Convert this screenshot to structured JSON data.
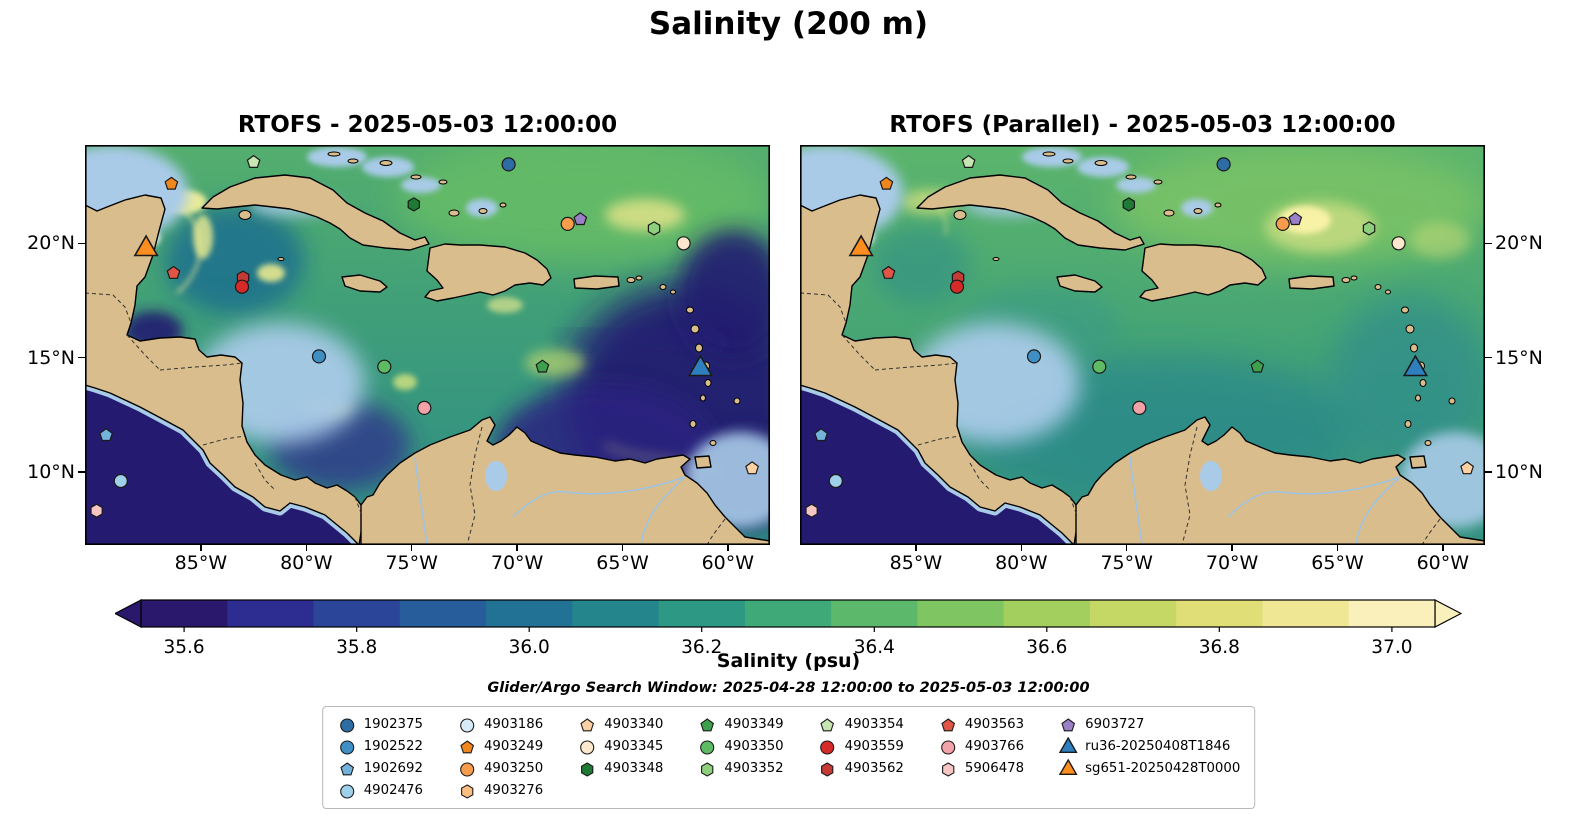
{
  "title": "Salinity (200 m)",
  "search_window_note": "Glider/Argo Search Window: 2025-04-28 12:00:00 to 2025-05-03 12:00:00",
  "chart_data": {
    "type": "heatmap",
    "subtype": "geographic salinity field comparison with float/glider scatter markers",
    "depth": "200 m",
    "region": "Caribbean Sea / western tropical Atlantic",
    "panels": [
      {
        "title": "RTOFS - 2025-05-03 12:00:00",
        "model": "RTOFS",
        "valid_time": "2025-05-03 12:00:00"
      },
      {
        "title": "RTOFS (Parallel) - 2025-05-03 12:00:00",
        "model": "RTOFS (Parallel)",
        "valid_time": "2025-05-03 12:00:00"
      }
    ],
    "extent": {
      "lon_min": -90.5,
      "lon_max": -58.0,
      "lat_min": 6.8,
      "lat_max": 24.3
    },
    "x_axis": {
      "tick_labels": [
        "85°W",
        "80°W",
        "75°W",
        "70°W",
        "65°W",
        "60°W"
      ],
      "tick_lons": [
        -85,
        -80,
        -75,
        -70,
        -65,
        -60
      ]
    },
    "y_axis": {
      "tick_labels": [
        "20°N",
        "15°N",
        "10°N"
      ],
      "tick_lats": [
        20,
        15,
        10
      ]
    },
    "colorbar": {
      "label": "Salinity (psu)",
      "tick_labels": [
        "35.6",
        "35.8",
        "36.0",
        "36.2",
        "36.4",
        "36.6",
        "36.8",
        "37.0"
      ],
      "tick_values": [
        35.6,
        35.8,
        36.0,
        36.2,
        36.4,
        36.6,
        36.8,
        37.0
      ],
      "vmin": 35.55,
      "vmax": 37.05,
      "extend": "both",
      "colors": [
        "#2a186c",
        "#2d2c90",
        "#2b4699",
        "#265d9a",
        "#227295",
        "#24858d",
        "#2d9883",
        "#3fa978",
        "#5cb96c",
        "#7fc562",
        "#a3cf5e",
        "#c5d765",
        "#e0de77",
        "#f0e795",
        "#f9f0bc"
      ]
    },
    "markers": [
      {
        "id": "4903249",
        "lon": -86.4,
        "lat": 22.6
      },
      {
        "id": "4903354",
        "lon": -82.5,
        "lat": 23.55
      },
      {
        "id": "1902375",
        "lon": -70.4,
        "lat": 23.45
      },
      {
        "id": "4903348",
        "lon": -74.9,
        "lat": 21.7
      },
      {
        "id": "4903250",
        "lon": -67.6,
        "lat": 20.85
      },
      {
        "id": "6903727",
        "lon": -67.0,
        "lat": 21.05
      },
      {
        "id": "4903352",
        "lon": -63.5,
        "lat": 20.65
      },
      {
        "id": "4903345",
        "lon": -62.1,
        "lat": 20.0
      },
      {
        "id": "sg651-20250428T0000",
        "lon": -87.6,
        "lat": 19.75
      },
      {
        "id": "4903563",
        "lon": -86.3,
        "lat": 18.7
      },
      {
        "id": "4903562",
        "lon": -83.0,
        "lat": 18.5
      },
      {
        "id": "4903559",
        "lon": -83.05,
        "lat": 18.1
      },
      {
        "id": "1902522",
        "lon": -79.4,
        "lat": 15.05
      },
      {
        "id": "4903350",
        "lon": -76.3,
        "lat": 14.6
      },
      {
        "id": "4903349",
        "lon": -68.8,
        "lat": 14.6
      },
      {
        "id": "ru36-20250408T1846",
        "lon": -61.3,
        "lat": 14.5
      },
      {
        "id": "4903766",
        "lon": -74.4,
        "lat": 12.8
      },
      {
        "id": "1902692",
        "lon": -89.5,
        "lat": 11.6
      },
      {
        "id": "4902476",
        "lon": -88.8,
        "lat": 9.6
      },
      {
        "id": "5906478",
        "lon": -89.95,
        "lat": 8.3
      },
      {
        "id": "4903340",
        "lon": -58.85,
        "lat": 10.15
      }
    ]
  },
  "legend": {
    "columns": [
      [
        {
          "label": "1902375",
          "shape": "circle",
          "color": "#2e6da4"
        },
        {
          "label": "1902522",
          "shape": "circle",
          "color": "#3f8fc5"
        },
        {
          "label": "1902692",
          "shape": "pentagon",
          "color": "#74b2dc"
        },
        {
          "label": "4902476",
          "shape": "circle",
          "color": "#9fd0ea"
        }
      ],
      [
        {
          "label": "4903186",
          "shape": "circle",
          "color": "#d6ebf7"
        },
        {
          "label": "4903249",
          "shape": "pentagon",
          "color": "#f0861e"
        },
        {
          "label": "4903250",
          "shape": "circle",
          "color": "#f79b4d"
        },
        {
          "label": "4903276",
          "shape": "hexagon",
          "color": "#fbbd80"
        }
      ],
      [
        {
          "label": "4903340",
          "shape": "pentagon",
          "color": "#fcd2a4"
        },
        {
          "label": "4903345",
          "shape": "circle",
          "color": "#fde8cd"
        },
        {
          "label": "4903348",
          "shape": "hexagon",
          "color": "#1e7a34"
        }
      ],
      [
        {
          "label": "4903349",
          "shape": "pentagon",
          "color": "#3da04c"
        },
        {
          "label": "4903350",
          "shape": "circle",
          "color": "#5fba64"
        },
        {
          "label": "4903352",
          "shape": "hexagon",
          "color": "#8ecf7d"
        }
      ],
      [
        {
          "label": "4903354",
          "shape": "pentagon",
          "color": "#c8e6b2"
        },
        {
          "label": "4903559",
          "shape": "circle",
          "color": "#d62a28"
        },
        {
          "label": "4903562",
          "shape": "hexagon",
          "color": "#c43a35"
        }
      ],
      [
        {
          "label": "4903563",
          "shape": "pentagon",
          "color": "#e05545"
        },
        {
          "label": "4903766",
          "shape": "circle",
          "color": "#f2a3a9"
        },
        {
          "label": "5906478",
          "shape": "hexagon",
          "color": "#f6c6c4"
        }
      ],
      [
        {
          "label": "6903727",
          "shape": "pentagon",
          "color": "#9b7fc7"
        },
        {
          "label": "ru36-20250408T1846",
          "shape": "triangle",
          "color": "#2f7fbe"
        },
        {
          "label": "sg651-20250428T0000",
          "shape": "triangle",
          "color": "#fd8d1e"
        }
      ]
    ]
  }
}
